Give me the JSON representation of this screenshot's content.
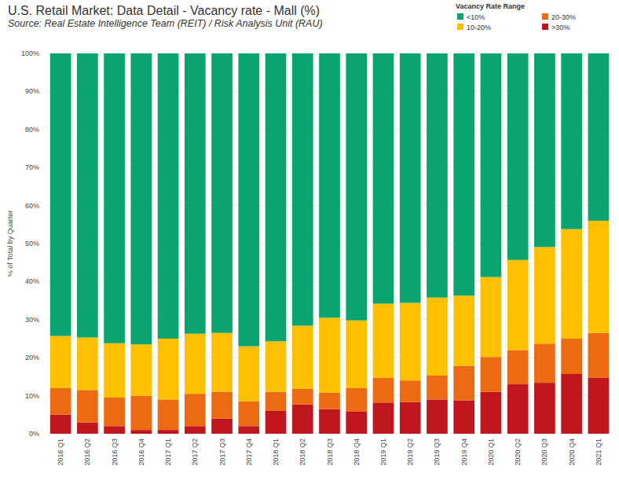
{
  "chart_data": {
    "type": "bar",
    "stacked": true,
    "grid": true,
    "legend": "top-right",
    "title": "U.S. Retail Market: Data Detail - Vacancy rate - Mall (%)",
    "subtitle": "Source: Real Estate Intelligence Team (REIT) / Risk Analysis Unit (RAU)",
    "y_label": "% of Total by Quarter",
    "legend_title": "Vacancy Rate Range",
    "categories": [
      "2016 Q1",
      "2016 Q2",
      "2016 Q3",
      "2016 Q4",
      "2017 Q1",
      "2017 Q2",
      "2017 Q3",
      "2017 Q4",
      "2018 Q1",
      "2018 Q2",
      "2018 Q3",
      "2018 Q4",
      "2019 Q1",
      "2019 Q2",
      "2019 Q3",
      "2019 Q4",
      "2020 Q1",
      "2020 Q2",
      "2020 Q3",
      "2020 Q4",
      "2021 Q1"
    ],
    "series": [
      {
        "name": "<10%",
        "color": "#0aa56f",
        "values": [
          74.3,
          74.7,
          76.2,
          76.5,
          75,
          73.7,
          73.5,
          77,
          75.7,
          71.6,
          69.5,
          70.2,
          65.8,
          65.6,
          64.2,
          63.7,
          58.8,
          54.3,
          50.9,
          46.2,
          44
        ]
      },
      {
        "name": "10-20%",
        "color": "#ffc000",
        "values": [
          13.7,
          13.8,
          14.3,
          13.5,
          16,
          15.8,
          15.5,
          14.5,
          13.3,
          16.6,
          19.7,
          17.8,
          19.5,
          20.4,
          20.5,
          18.5,
          21,
          23.7,
          25.4,
          28.8,
          29.5
        ]
      },
      {
        "name": "20-30%",
        "color": "#ec6b12",
        "values": [
          7,
          8.5,
          7.5,
          9,
          8,
          8.5,
          7,
          6.5,
          5,
          4.1,
          4.3,
          6.2,
          6.5,
          5.7,
          6.3,
          9,
          9.2,
          9,
          10.3,
          9.3,
          11.8
        ]
      },
      {
        "name": ">30%",
        "color": "#c0161e",
        "values": [
          5,
          3,
          2,
          1,
          1,
          2,
          4,
          2,
          6,
          7.7,
          6.5,
          5.8,
          8.2,
          8.3,
          9,
          8.8,
          11,
          13,
          13.4,
          15.7,
          14.7
        ]
      }
    ],
    "ylim": [
      0,
      100
    ],
    "yticks": [
      {
        "value": 0,
        "label": "0%"
      },
      {
        "value": 10,
        "label": "10%"
      },
      {
        "value": 20,
        "label": "20%"
      },
      {
        "value": 30,
        "label": "30%"
      },
      {
        "value": 40,
        "label": "40%"
      },
      {
        "value": 50,
        "label": "50%"
      },
      {
        "value": 60,
        "label": "60%"
      },
      {
        "value": 70,
        "label": "70%"
      },
      {
        "value": 80,
        "label": "80%"
      },
      {
        "value": 90,
        "label": "90%"
      },
      {
        "value": 100,
        "label": "100%"
      }
    ]
  }
}
